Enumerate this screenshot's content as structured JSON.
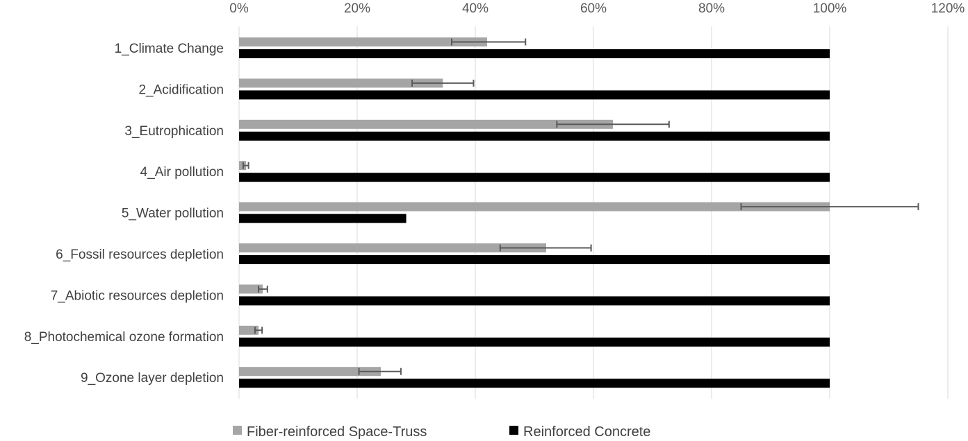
{
  "chart_data": {
    "type": "bar",
    "orientation": "horizontal",
    "title": "",
    "xlabel": "",
    "ylabel": "",
    "xlim": [
      0,
      120
    ],
    "x_ticks": [
      "0%",
      "20%",
      "40%",
      "60%",
      "80%",
      "100%",
      "120%"
    ],
    "x_tick_values": [
      0,
      20,
      40,
      60,
      80,
      100,
      120
    ],
    "grid": true,
    "legend_position": "bottom",
    "categories": [
      "1_Climate Change",
      "2_Acidification",
      "3_Eutrophication",
      "4_Air pollution",
      "5_Water pollution",
      "6_Fossil resources depletion",
      "7_Abiotic resources depletion",
      "8_Photochemical ozone formation",
      "9_Ozone layer depletion"
    ],
    "series": [
      {
        "name": "Fiber-reinforced Space-Truss",
        "color": "#a5a5a5",
        "values": [
          42,
          34.5,
          63.3,
          1.2,
          100,
          52,
          4,
          3.3,
          24
        ],
        "error_low": [
          36,
          29.3,
          53.8,
          0.7,
          85,
          44.2,
          3.3,
          2.7,
          20.3
        ],
        "error_high": [
          48.5,
          39.7,
          72.8,
          1.6,
          115,
          59.6,
          4.8,
          3.9,
          27.4
        ]
      },
      {
        "name": "Reinforced Concrete",
        "color": "#000000",
        "values": [
          100,
          100,
          100,
          100,
          28.3,
          100,
          100,
          100,
          100
        ]
      }
    ]
  },
  "colors": {
    "gridline": "#d9d9d9",
    "error_bar": "#595959"
  }
}
